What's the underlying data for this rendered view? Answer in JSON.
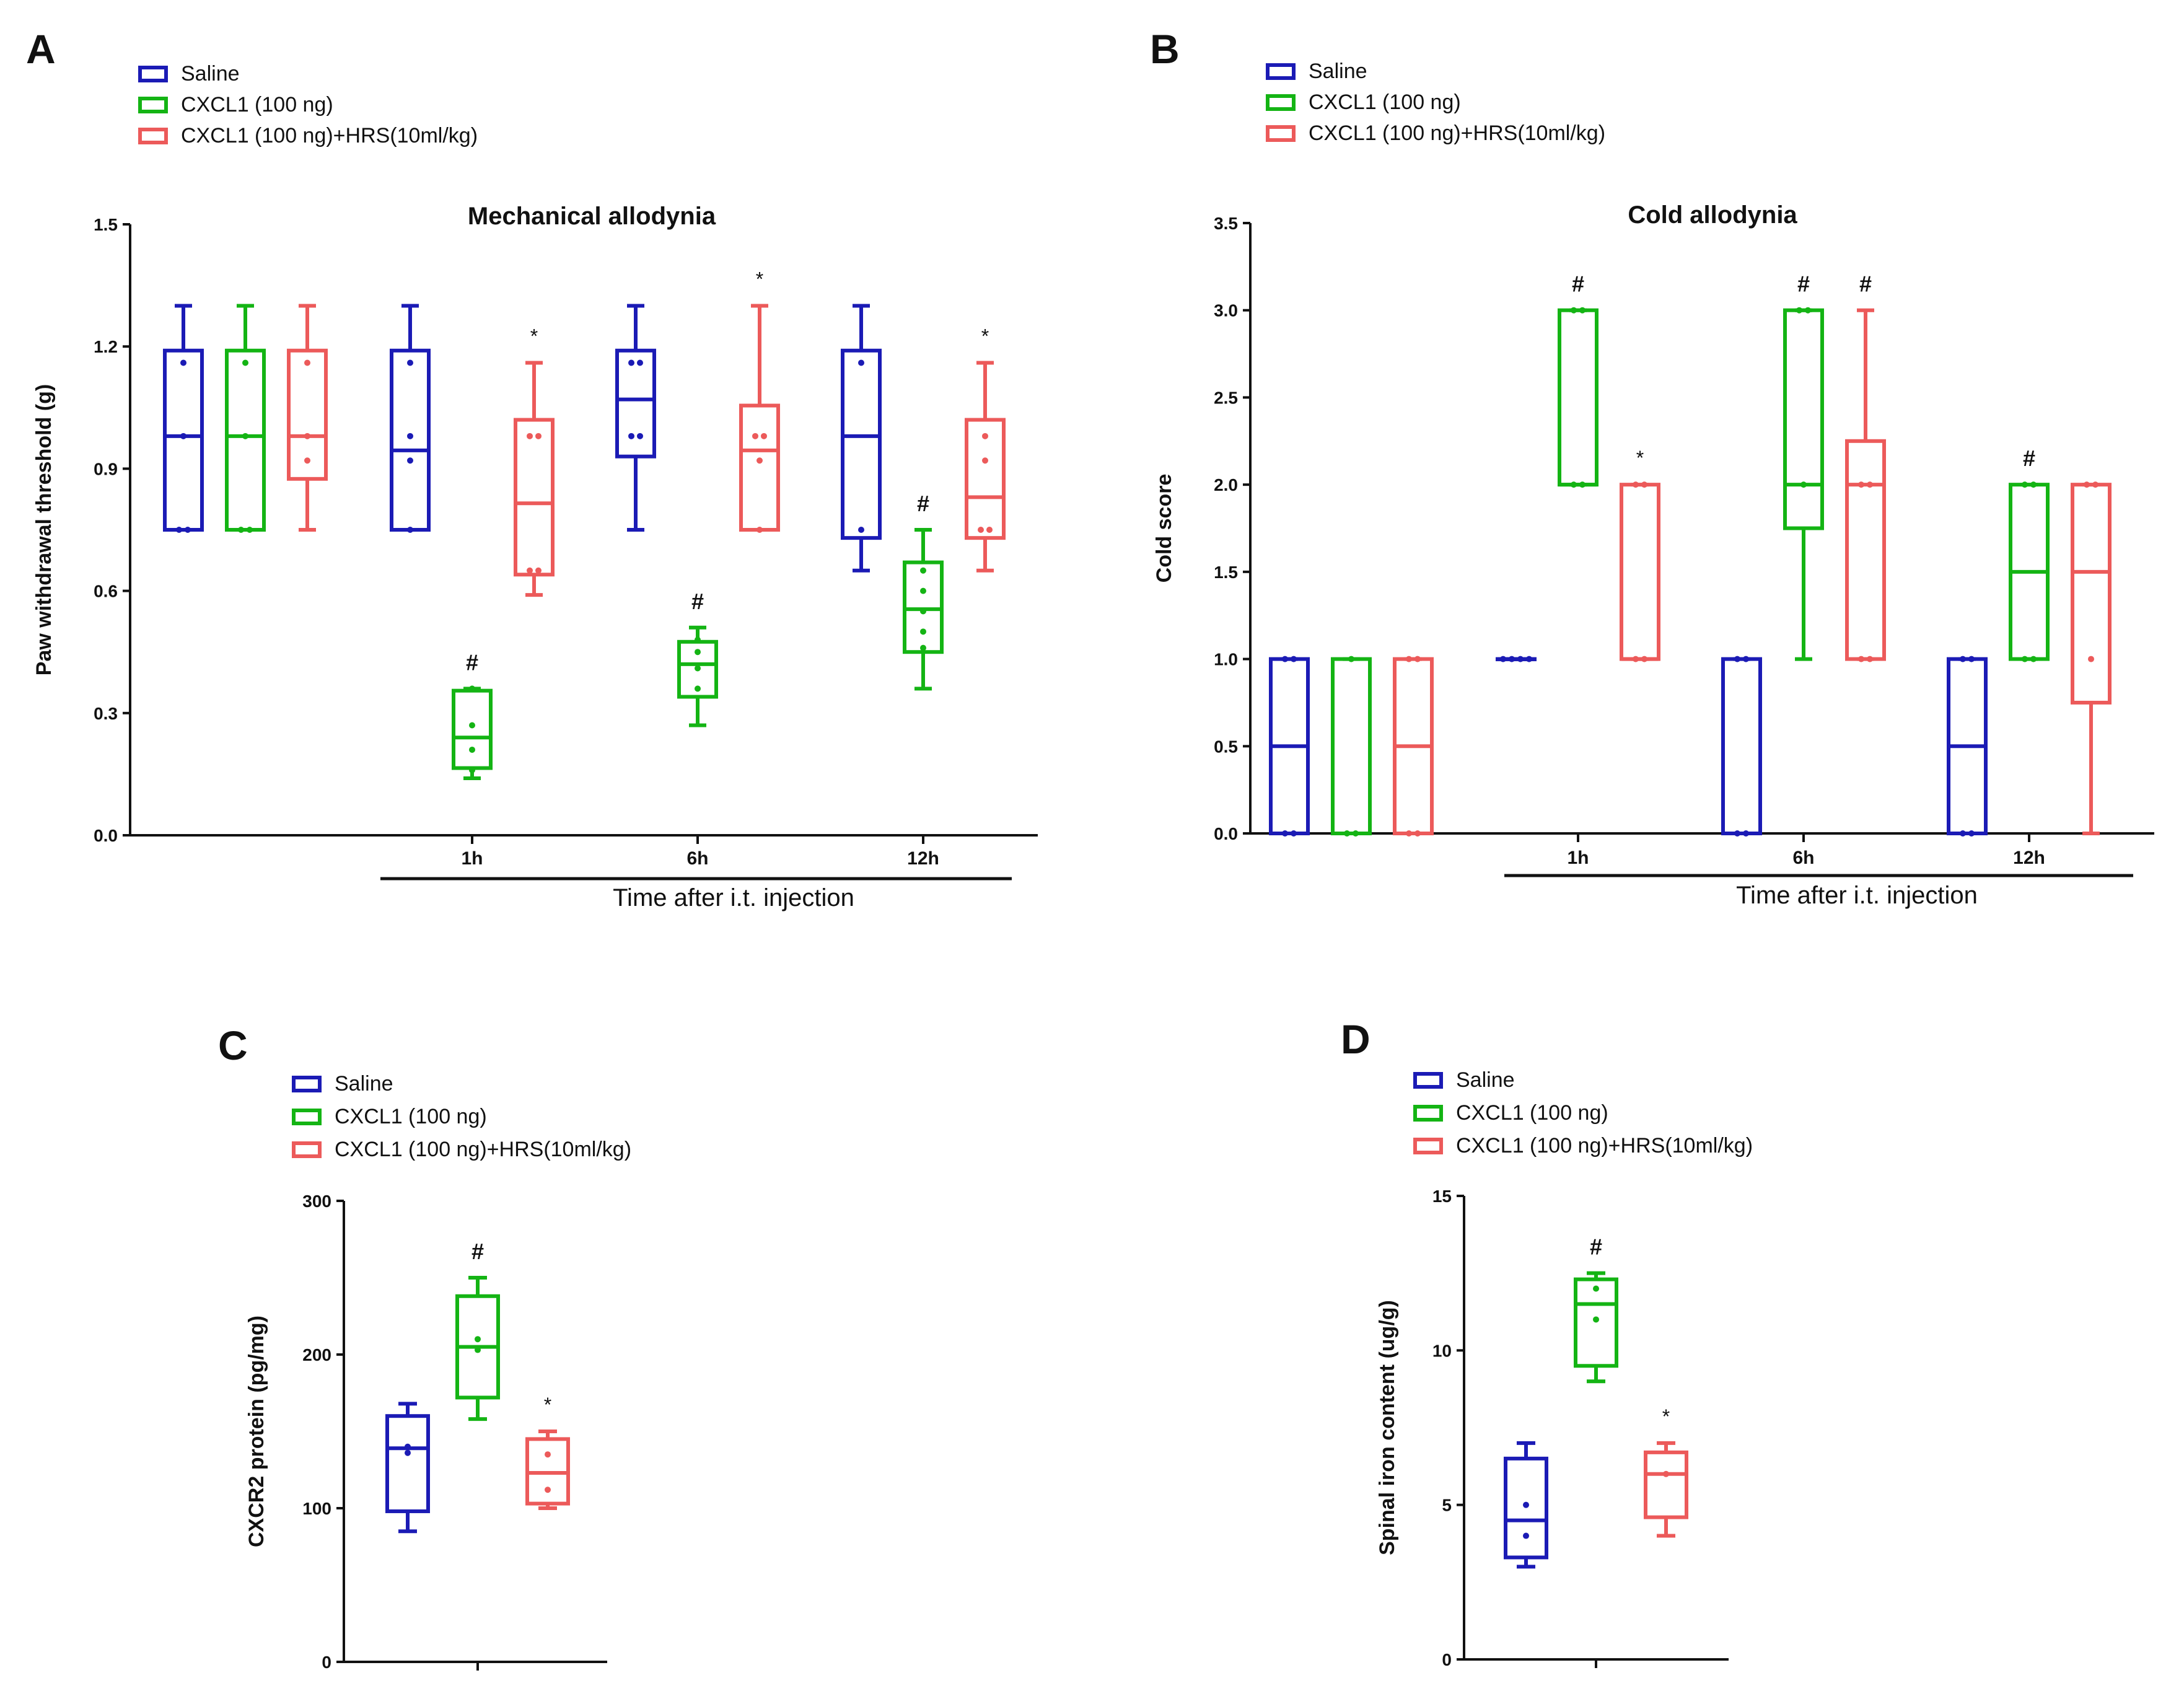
{
  "colors": {
    "Saline": "#1b1bb5",
    "CXCL1 (100 ng)": "#14b414",
    "CXCL1 (100 ng)+HRS(10ml/kg)": "#ec5a5a"
  },
  "chart_data": [
    {
      "id": "A",
      "type": "box",
      "panel_label": "A",
      "title": "Mechanical allodynia",
      "ylabel": "Paw withdrawal threshold (g)",
      "xlabel": "Time after i.t. injection",
      "ylim": [
        0,
        1.5
      ],
      "yticks": [
        0.0,
        0.3,
        0.6,
        0.9,
        1.2,
        1.5
      ],
      "ytick_labels": [
        "0.0",
        "0.3",
        "0.6",
        "0.9",
        "1.2",
        "1.5"
      ],
      "legend": [
        "Saline",
        "CXCL1 (100 ng)",
        "CXCL1 (100 ng)+HRS(10ml/kg)"
      ],
      "categories": [
        "",
        "1h",
        "6h",
        "12h"
      ],
      "series": [
        {
          "name": "Saline",
          "boxes": [
            {
              "min": 0.75,
              "q1": 0.75,
              "median": 0.98,
              "q3": 1.19,
              "max": 1.3,
              "points": [
                1.16,
                0.98,
                0.75,
                0.75
              ]
            },
            {
              "min": 0.75,
              "q1": 0.75,
              "median": 0.945,
              "q3": 1.19,
              "max": 1.3,
              "points": [
                1.16,
                0.98,
                0.92,
                0.75
              ]
            },
            {
              "min": 0.75,
              "q1": 0.93,
              "median": 1.07,
              "q3": 1.19,
              "max": 1.3,
              "points": [
                1.16,
                1.16,
                0.98,
                0.98
              ]
            },
            {
              "min": 0.65,
              "q1": 0.73,
              "median": 0.98,
              "q3": 1.19,
              "max": 1.3,
              "points": [
                1.16,
                0.75
              ]
            }
          ]
        },
        {
          "name": "CXCL1 (100 ng)",
          "boxes": [
            {
              "min": 0.75,
              "q1": 0.75,
              "median": 0.98,
              "q3": 1.19,
              "max": 1.3,
              "points": [
                1.16,
                0.98,
                0.75,
                0.75
              ]
            },
            {
              "min": 0.14,
              "q1": 0.165,
              "median": 0.24,
              "q3": 0.355,
              "max": 0.36,
              "points": [
                0.36,
                0.27,
                0.21,
                0.16
              ]
            },
            {
              "min": 0.27,
              "q1": 0.34,
              "median": 0.42,
              "q3": 0.475,
              "max": 0.51,
              "points": [
                0.48,
                0.45,
                0.41,
                0.36
              ]
            },
            {
              "min": 0.36,
              "q1": 0.45,
              "median": 0.555,
              "q3": 0.67,
              "max": 0.75,
              "points": [
                0.65,
                0.6,
                0.55,
                0.5,
                0.46
              ]
            }
          ]
        },
        {
          "name": "CXCL1 (100 ng)+HRS(10ml/kg)",
          "boxes": [
            {
              "min": 0.75,
              "q1": 0.875,
              "median": 0.98,
              "q3": 1.19,
              "max": 1.3,
              "points": [
                1.16,
                0.98,
                0.92
              ]
            },
            {
              "min": 0.59,
              "q1": 0.64,
              "median": 0.815,
              "q3": 1.02,
              "max": 1.16,
              "points": [
                0.98,
                0.98,
                0.65,
                0.65
              ]
            },
            {
              "min": 0.75,
              "q1": 0.75,
              "median": 0.945,
              "q3": 1.055,
              "max": 1.3,
              "points": [
                0.98,
                0.98,
                0.92,
                0.75
              ]
            },
            {
              "min": 0.65,
              "q1": 0.73,
              "median": 0.83,
              "q3": 1.02,
              "max": 1.16,
              "points": [
                0.98,
                0.92,
                0.75,
                0.75
              ]
            }
          ]
        }
      ],
      "annotations": [
        {
          "group": 1,
          "series": 1,
          "y": 0.36,
          "text": "#"
        },
        {
          "group": 1,
          "series": 2,
          "y": 1.16,
          "text": "*"
        },
        {
          "group": 2,
          "series": 1,
          "y": 0.51,
          "text": "#"
        },
        {
          "group": 2,
          "series": 2,
          "y": 1.3,
          "text": "*"
        },
        {
          "group": 3,
          "series": 1,
          "y": 0.75,
          "text": "#"
        },
        {
          "group": 3,
          "series": 2,
          "y": 1.16,
          "text": "*"
        }
      ]
    },
    {
      "id": "B",
      "type": "box",
      "panel_label": "B",
      "title": "Cold allodynia",
      "ylabel": "Cold score",
      "xlabel": "Time after i.t. injection",
      "ylim": [
        0,
        3.5
      ],
      "yticks": [
        0.0,
        0.5,
        1.0,
        1.5,
        2.0,
        2.5,
        3.0,
        3.5
      ],
      "ytick_labels": [
        "0.0",
        "0.5",
        "1.0",
        "1.5",
        "2.0",
        "2.5",
        "3.0",
        "3.5"
      ],
      "legend": [
        "Saline",
        "CXCL1 (100 ng)",
        "CXCL1 (100 ng)+HRS(10ml/kg)"
      ],
      "categories": [
        "",
        "1h",
        "6h",
        "12h"
      ],
      "series": [
        {
          "name": "Saline",
          "boxes": [
            {
              "min": 0,
              "q1": 0,
              "median": 0.5,
              "q3": 1,
              "max": 1,
              "points": [
                1,
                1,
                0,
                0
              ]
            },
            {
              "min": 1,
              "q1": 1,
              "median": 1,
              "q3": 1,
              "max": 1,
              "points": [
                1,
                1,
                1,
                1
              ]
            },
            {
              "min": 0,
              "q1": 0,
              "median": 0,
              "q3": 1,
              "max": 1,
              "points": [
                1,
                1,
                0,
                0
              ]
            },
            {
              "min": 0,
              "q1": 0,
              "median": 0.5,
              "q3": 1,
              "max": 1,
              "points": [
                1,
                1,
                0,
                0
              ]
            }
          ]
        },
        {
          "name": "CXCL1 (100 ng)",
          "boxes": [
            {
              "min": 0,
              "q1": 0,
              "median": 0,
              "q3": 1,
              "max": 1,
              "points": [
                1,
                0,
                0
              ]
            },
            {
              "min": 2,
              "q1": 2,
              "median": 2,
              "q3": 3,
              "max": 3,
              "points": [
                3,
                3,
                2,
                2
              ]
            },
            {
              "min": 1,
              "q1": 1.75,
              "median": 2,
              "q3": 3,
              "max": 3,
              "points": [
                3,
                3,
                2
              ]
            },
            {
              "min": 1,
              "q1": 1,
              "median": 1.5,
              "q3": 2,
              "max": 2,
              "points": [
                2,
                2,
                1,
                1
              ]
            }
          ]
        },
        {
          "name": "CXCL1 (100 ng)+HRS(10ml/kg)",
          "boxes": [
            {
              "min": 0,
              "q1": 0,
              "median": 0.5,
              "q3": 1,
              "max": 1,
              "points": [
                1,
                1,
                0,
                0
              ]
            },
            {
              "min": 1,
              "q1": 1,
              "median": 1,
              "q3": 2,
              "max": 2,
              "points": [
                2,
                2,
                1,
                1
              ]
            },
            {
              "min": 1,
              "q1": 1,
              "median": 2,
              "q3": 2.25,
              "max": 3,
              "points": [
                2,
                2,
                1,
                1
              ]
            },
            {
              "min": 0,
              "q1": 0.75,
              "median": 1.5,
              "q3": 2,
              "max": 2,
              "points": [
                2,
                2,
                1
              ]
            }
          ]
        }
      ],
      "annotations": [
        {
          "group": 1,
          "series": 1,
          "y": 3,
          "text": "#"
        },
        {
          "group": 1,
          "series": 2,
          "y": 2,
          "text": "*"
        },
        {
          "group": 2,
          "series": 1,
          "y": 3,
          "text": "#"
        },
        {
          "group": 2,
          "series": 2,
          "y": 3,
          "text": "#"
        },
        {
          "group": 3,
          "series": 1,
          "y": 2,
          "text": "#"
        }
      ]
    },
    {
      "id": "C",
      "type": "box",
      "panel_label": "C",
      "title": "",
      "ylabel": "CXCR2 protein (pg/mg)",
      "xlabel": "",
      "ylim": [
        0,
        300
      ],
      "yticks": [
        0,
        100,
        200,
        300
      ],
      "ytick_labels": [
        "0",
        "100",
        "200",
        "300"
      ],
      "legend": [
        "Saline",
        "CXCL1 (100 ng)",
        "CXCL1 (100 ng)+HRS(10ml/kg)"
      ],
      "categories": [
        ""
      ],
      "series": [
        {
          "name": "Saline",
          "boxes": [
            {
              "min": 85,
              "q1": 98,
              "median": 139,
              "q3": 160,
              "max": 168,
              "points": [
                140,
                136
              ]
            }
          ]
        },
        {
          "name": "CXCL1 (100 ng)",
          "boxes": [
            {
              "min": 158,
              "q1": 172,
              "median": 205,
              "q3": 238,
              "max": 250,
              "points": [
                210,
                203
              ]
            }
          ]
        },
        {
          "name": "CXCL1 (100 ng)+HRS(10ml/kg)",
          "boxes": [
            {
              "min": 100,
              "q1": 103,
              "median": 123,
              "q3": 145,
              "max": 150,
              "points": [
                135,
                112
              ]
            }
          ]
        }
      ],
      "annotations": [
        {
          "group": 0,
          "series": 1,
          "y": 250,
          "text": "#"
        },
        {
          "group": 0,
          "series": 2,
          "y": 150,
          "text": "*"
        }
      ]
    },
    {
      "id": "D",
      "type": "box",
      "panel_label": "D",
      "title": "",
      "ylabel": "Spinal iron content (ug/g)",
      "xlabel": "",
      "ylim": [
        0,
        15
      ],
      "yticks": [
        0,
        5,
        10,
        15
      ],
      "ytick_labels": [
        "0",
        "5",
        "10",
        "15"
      ],
      "legend": [
        "Saline",
        "CXCL1 (100 ng)",
        "CXCL1 (100 ng)+HRS(10ml/kg)"
      ],
      "categories": [
        ""
      ],
      "series": [
        {
          "name": "Saline",
          "boxes": [
            {
              "min": 3,
              "q1": 3.3,
              "median": 4.5,
              "q3": 6.5,
              "max": 7,
              "points": [
                5,
                4
              ]
            }
          ]
        },
        {
          "name": "CXCL1 (100 ng)",
          "boxes": [
            {
              "min": 9,
              "q1": 9.5,
              "median": 11.5,
              "q3": 12.3,
              "max": 12.5,
              "points": [
                12,
                11
              ]
            }
          ]
        },
        {
          "name": "CXCL1 (100 ng)+HRS(10ml/kg)",
          "boxes": [
            {
              "min": 4,
              "q1": 4.6,
              "median": 6,
              "q3": 6.7,
              "max": 7,
              "points": [
                6
              ]
            }
          ]
        }
      ],
      "annotations": [
        {
          "group": 0,
          "series": 1,
          "y": 12.5,
          "text": "#"
        },
        {
          "group": 0,
          "series": 2,
          "y": 7,
          "text": "*"
        }
      ]
    }
  ]
}
